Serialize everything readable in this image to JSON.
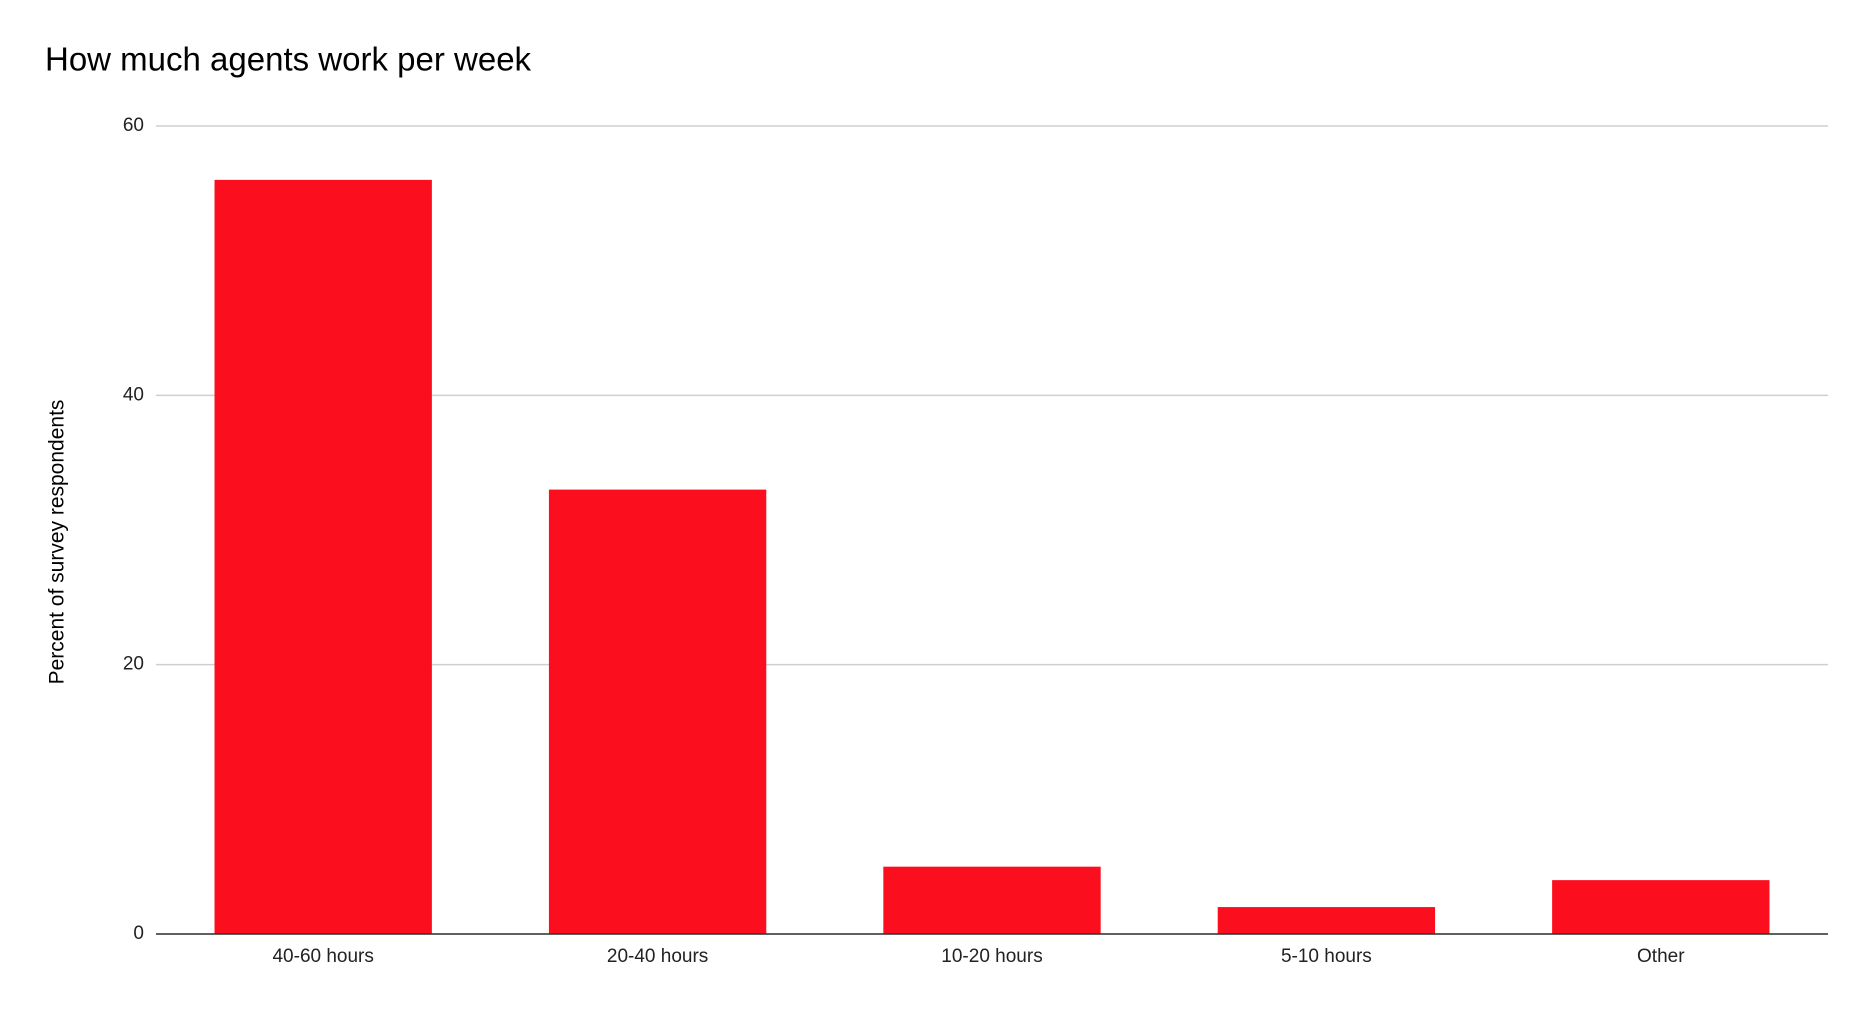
{
  "chart_data": {
    "type": "bar",
    "title": "How much agents work per week",
    "y_label": "Percent of survey respondents",
    "categories": [
      "40-60 hours",
      "20-40 hours",
      "10-20 hours",
      "5-10 hours",
      "Other"
    ],
    "values": [
      56,
      33,
      5,
      2,
      4
    ],
    "color": "#fb0f1e",
    "ylim": [
      0,
      60
    ],
    "yticks": [
      0,
      20,
      40,
      60
    ],
    "grid": true
  }
}
